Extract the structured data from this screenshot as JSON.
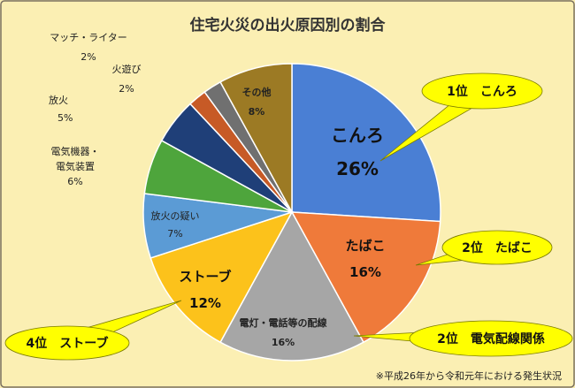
{
  "chart_data": {
    "type": "pie",
    "title": "住宅火災の出火原因別の割合",
    "slices": [
      {
        "name": "こんろ",
        "value_label": "26%",
        "value": 26,
        "color": "#4a7fd4"
      },
      {
        "name": "たばこ",
        "value_label": "16%",
        "value": 16,
        "color": "#ef7a3a"
      },
      {
        "name": "電灯・電話等の配線",
        "value_label": "16%",
        "value": 16,
        "color": "#a6a6a6"
      },
      {
        "name": "ストーブ",
        "value_label": "12%",
        "value": 12,
        "color": "#fcc21b"
      },
      {
        "name": "放火の疑い",
        "value_label": "7%",
        "value": 7,
        "color": "#5b9bd5"
      },
      {
        "name_lines": [
          "電気機器・",
          "電気装置"
        ],
        "value_label": "6%",
        "value": 6,
        "color": "#4ea53c"
      },
      {
        "name": "放火",
        "value_label": "5%",
        "value": 5,
        "color": "#1f3f78"
      },
      {
        "name": "火遊び",
        "value_label": "2%",
        "value": 2,
        "color": "#c75a26"
      },
      {
        "name": "マッチ・ライター",
        "value_label": "2%",
        "value": 2,
        "color": "#707070"
      },
      {
        "name": "その他",
        "value_label": "8%",
        "value": 8,
        "color": "#9c7a24"
      }
    ],
    "callouts": [
      {
        "text": "1位　こんろ",
        "slice": 0
      },
      {
        "text": "2位　たばこ",
        "slice": 1
      },
      {
        "text": "2位　電気配線関係",
        "slice": 2
      },
      {
        "text": "4位　ストーブ",
        "slice": 3
      }
    ],
    "note": "※平成26年から令和元年における発生状況",
    "callout_color": "#ffff00"
  }
}
